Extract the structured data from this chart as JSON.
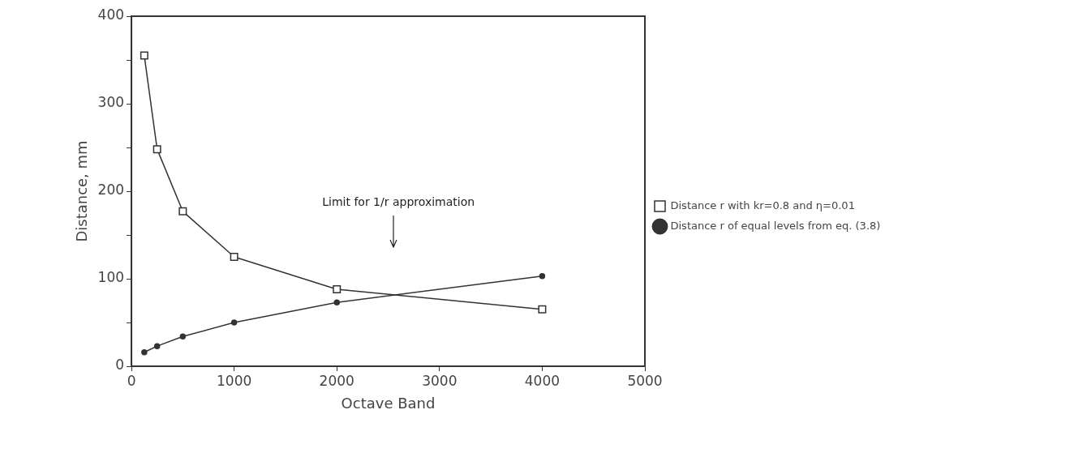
{
  "chart_data": {
    "type": "line",
    "xlabel": "Octave Band",
    "ylabel": "Distance, mm",
    "x": [
      125,
      250,
      500,
      1000,
      2000,
      4000
    ],
    "series": [
      {
        "name": "Distance r with kr=0.8 and η=0.01",
        "color": "#333333",
        "marker": "square",
        "values": [
          355,
          248,
          177,
          125,
          88,
          65
        ]
      },
      {
        "name": "Distance r of equal levels from eq. (3.8)",
        "color": "#333333",
        "marker": "circle",
        "values": [
          16,
          23,
          34,
          50,
          73,
          103
        ]
      }
    ],
    "xlim": [
      0,
      5000
    ],
    "xticks": [
      0,
      1000,
      2000,
      3000,
      4000,
      5000
    ],
    "ylim": [
      0,
      400
    ],
    "yticks": [
      0,
      {
        "value": 50,
        "label": null
      },
      100,
      {
        "value": 150,
        "label": null
      },
      200,
      {
        "value": 250,
        "label": null
      },
      300,
      {
        "value": 350,
        "label": null
      },
      400
    ],
    "grid": false,
    "legend": "right",
    "line_style": "solid",
    "annotations": [
      "Limit for 1/r approximation"
    ]
  }
}
